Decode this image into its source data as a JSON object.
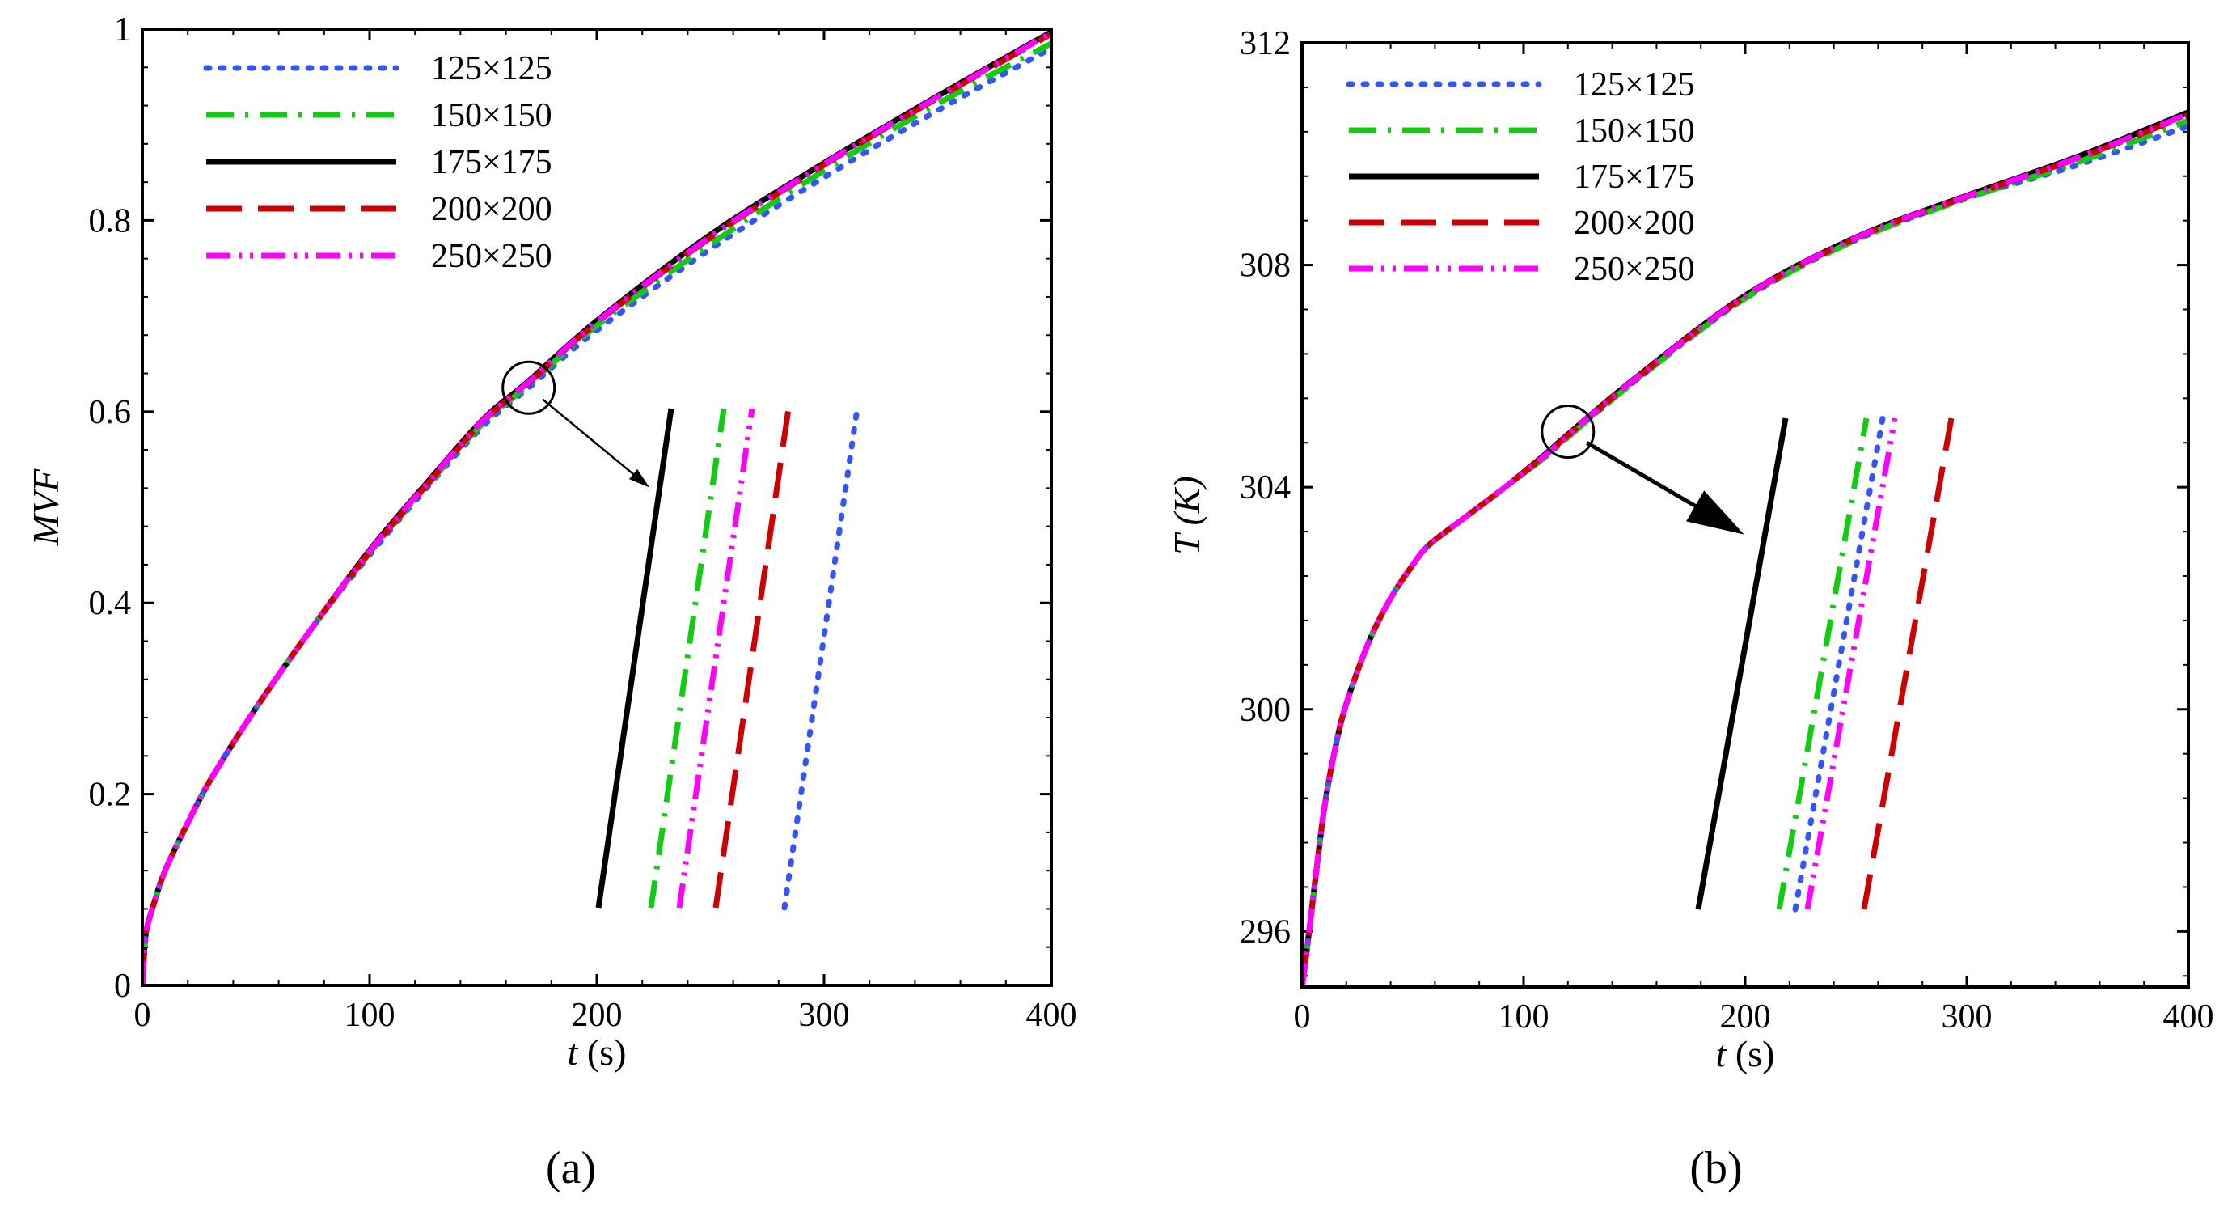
{
  "figure": {
    "series_styles": [
      {
        "name": "125×125",
        "color": "#3355ff",
        "dash": "dot"
      },
      {
        "name": "150×150",
        "color": "#11cc11",
        "dash": "dashdot"
      },
      {
        "name": "175×175",
        "color": "#000000",
        "dash": "solid"
      },
      {
        "name": "200×200",
        "color": "#cc0000",
        "dash": "dash"
      },
      {
        "name": "250×250",
        "color": "#ff00ff",
        "dash": "dashdotdot"
      }
    ]
  },
  "chart_data": [
    {
      "type": "line",
      "panel_label": "(a)",
      "title": "",
      "xlabel_var": "t",
      "xlabel_unit": "(s)",
      "ylabel": "MVF",
      "xlim": [
        0,
        400
      ],
      "ylim": [
        0,
        1
      ],
      "xticks": [
        0,
        100,
        200,
        300,
        400
      ],
      "yticks": [
        0,
        0.2,
        0.4,
        0.6,
        0.8,
        1
      ],
      "ytick_labels": [
        "0",
        "0.2",
        "0.4",
        "0.6",
        "0.8",
        "1"
      ],
      "legend": [
        "125×125",
        "150×150",
        "175×175",
        "200×200",
        "250×250"
      ],
      "legend_position": "top-left",
      "x": [
        0,
        1,
        2,
        5,
        10,
        20,
        30,
        50,
        75,
        100,
        125,
        150,
        170,
        200,
        250,
        300,
        350,
        400
      ],
      "series": [
        {
          "name": "125×125",
          "values": [
            0,
            0.04,
            0.06,
            0.085,
            0.12,
            0.17,
            0.215,
            0.29,
            0.375,
            0.45,
            0.52,
            0.585,
            0.625,
            0.685,
            0.77,
            0.845,
            0.915,
            0.98
          ]
        },
        {
          "name": "150×150",
          "values": [
            0,
            0.04,
            0.06,
            0.085,
            0.12,
            0.17,
            0.215,
            0.29,
            0.375,
            0.452,
            0.522,
            0.588,
            0.628,
            0.69,
            0.775,
            0.852,
            0.922,
            0.985
          ]
        },
        {
          "name": "175×175",
          "values": [
            0,
            0.04,
            0.06,
            0.085,
            0.12,
            0.17,
            0.215,
            0.29,
            0.375,
            0.455,
            0.525,
            0.592,
            0.632,
            0.695,
            0.785,
            0.86,
            0.93,
            0.997
          ]
        },
        {
          "name": "200×200",
          "values": [
            0,
            0.04,
            0.06,
            0.085,
            0.12,
            0.17,
            0.215,
            0.29,
            0.375,
            0.453,
            0.523,
            0.59,
            0.63,
            0.693,
            0.782,
            0.858,
            0.928,
            0.995
          ]
        },
        {
          "name": "250×250",
          "values": [
            0,
            0.04,
            0.06,
            0.085,
            0.12,
            0.17,
            0.215,
            0.29,
            0.375,
            0.454,
            0.524,
            0.591,
            0.631,
            0.694,
            0.783,
            0.859,
            0.929,
            0.996
          ]
        }
      ],
      "zoom_circle_at": {
        "x": 170,
        "y": 0.625
      },
      "inset_order": [
        "175×175",
        "150×150",
        "250×250",
        "200×200",
        "125×125"
      ]
    },
    {
      "type": "line",
      "panel_label": "(b)",
      "title": "",
      "xlabel_var": "t",
      "xlabel_unit": "(s)",
      "ylabel_var": "T",
      "ylabel_unit": "(K)",
      "xlim": [
        0,
        400
      ],
      "ylim": [
        295,
        312
      ],
      "xticks": [
        0,
        100,
        200,
        300,
        400
      ],
      "yticks": [
        296,
        300,
        304,
        308,
        312
      ],
      "ytick_labels": [
        "296",
        "300",
        "304",
        "308",
        "312"
      ],
      "legend": [
        "125×125",
        "150×150",
        "175×175",
        "200×200",
        "250×250"
      ],
      "legend_position": "top-left",
      "x": [
        0,
        2,
        5,
        10,
        15,
        20,
        30,
        40,
        50,
        57,
        70,
        90,
        110,
        120,
        150,
        200,
        250,
        300,
        350,
        400
      ],
      "series": [
        {
          "name": "125×125",
          "values": [
            295,
            295.6,
            296.6,
            298.2,
            299.3,
            300.1,
            301.2,
            302.0,
            302.6,
            302.95,
            303.35,
            303.95,
            304.55,
            304.9,
            305.9,
            307.4,
            308.45,
            309.2,
            309.8,
            310.5
          ]
        },
        {
          "name": "150×150",
          "values": [
            295,
            295.6,
            296.6,
            298.2,
            299.3,
            300.1,
            301.2,
            302.0,
            302.6,
            302.95,
            303.35,
            303.95,
            304.55,
            304.9,
            305.9,
            307.4,
            308.45,
            309.2,
            309.85,
            310.6
          ]
        },
        {
          "name": "175×175",
          "values": [
            295,
            295.6,
            296.6,
            298.2,
            299.3,
            300.1,
            301.2,
            302.0,
            302.6,
            302.95,
            303.35,
            303.95,
            304.6,
            304.95,
            305.95,
            307.45,
            308.5,
            309.25,
            309.95,
            310.75
          ]
        },
        {
          "name": "200×200",
          "values": [
            295,
            295.6,
            296.6,
            298.2,
            299.3,
            300.1,
            301.2,
            302.0,
            302.6,
            302.95,
            303.35,
            303.95,
            304.58,
            304.93,
            305.93,
            307.43,
            308.48,
            309.23,
            309.92,
            310.7
          ]
        },
        {
          "name": "250×250",
          "values": [
            295,
            295.6,
            296.6,
            298.2,
            299.3,
            300.1,
            301.2,
            302.0,
            302.6,
            302.95,
            303.35,
            303.95,
            304.58,
            304.94,
            305.94,
            307.44,
            308.49,
            309.24,
            309.93,
            310.72
          ]
        }
      ],
      "zoom_circle_at": {
        "x": 120,
        "y": 305
      },
      "inset_order": [
        "175×175",
        "150×150",
        "125×125",
        "250×250",
        "200×200"
      ]
    }
  ]
}
